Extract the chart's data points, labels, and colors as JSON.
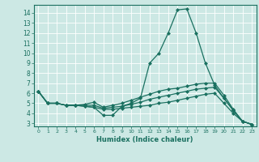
{
  "xlabel": "Humidex (Indice chaleur)",
  "background_color": "#cce8e4",
  "grid_color": "#ffffff",
  "line_color": "#1a7060",
  "xlim": [
    -0.5,
    23.5
  ],
  "ylim": [
    2.7,
    14.8
  ],
  "xticks": [
    0,
    1,
    2,
    3,
    4,
    5,
    6,
    7,
    8,
    9,
    10,
    11,
    12,
    13,
    14,
    15,
    16,
    17,
    18,
    19,
    20,
    21,
    22,
    23
  ],
  "yticks": [
    3,
    4,
    5,
    6,
    7,
    8,
    9,
    10,
    11,
    12,
    13,
    14
  ],
  "series": [
    [
      6.2,
      5.0,
      5.0,
      4.8,
      4.8,
      4.7,
      4.6,
      3.8,
      3.8,
      4.7,
      5.0,
      5.5,
      9.0,
      10.0,
      12.0,
      14.3,
      14.4,
      12.0,
      9.0,
      6.8,
      5.5,
      4.3,
      3.2,
      2.9
    ],
    [
      6.2,
      5.0,
      5.0,
      4.8,
      4.8,
      4.9,
      5.1,
      4.6,
      4.8,
      5.0,
      5.3,
      5.6,
      5.9,
      6.2,
      6.4,
      6.5,
      6.7,
      6.9,
      7.0,
      7.0,
      5.8,
      4.4,
      3.2,
      2.9
    ],
    [
      6.2,
      5.0,
      5.0,
      4.8,
      4.8,
      4.8,
      4.8,
      4.5,
      4.6,
      4.7,
      4.9,
      5.1,
      5.4,
      5.6,
      5.8,
      6.0,
      6.2,
      6.4,
      6.5,
      6.6,
      5.5,
      4.3,
      3.2,
      2.9
    ],
    [
      6.2,
      5.0,
      5.0,
      4.8,
      4.8,
      4.7,
      4.6,
      4.4,
      4.4,
      4.5,
      4.6,
      4.7,
      4.8,
      5.0,
      5.1,
      5.3,
      5.5,
      5.7,
      5.9,
      6.0,
      5.0,
      4.0,
      3.2,
      2.9
    ]
  ]
}
